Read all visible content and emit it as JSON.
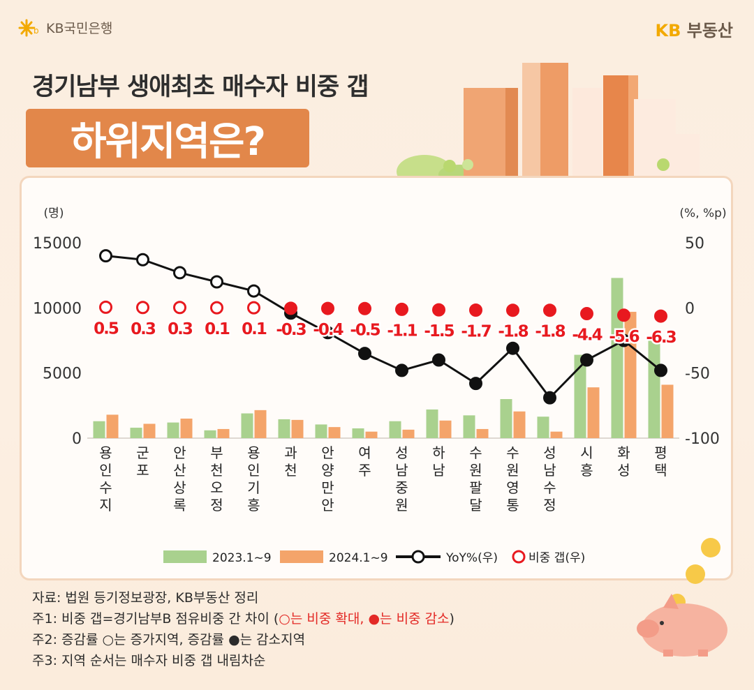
{
  "brand": {
    "left": "KB국민은행",
    "right_kb": "KB",
    "right_name": "부동산"
  },
  "header": {
    "subtitle": "경기남부 생애최초 매수자 비중 갭",
    "title": "하위지역은?"
  },
  "chart_data": {
    "type": "bar+line",
    "categories": [
      "용인수지",
      "군포",
      "안산상록",
      "부천오정",
      "용인기흥",
      "과천",
      "안양만안",
      "여주",
      "성남중원",
      "하남",
      "수원팔달",
      "수원영통",
      "성남수정",
      "시흥",
      "화성",
      "평택"
    ],
    "category_lines": [
      [
        "용",
        "인",
        "수",
        "지"
      ],
      [
        "군",
        "포"
      ],
      [
        "안",
        "산",
        "상",
        "록"
      ],
      [
        "부",
        "천",
        "오",
        "정"
      ],
      [
        "용",
        "인",
        "기",
        "흥"
      ],
      [
        "과",
        "천"
      ],
      [
        "안",
        "양",
        "만",
        "안"
      ],
      [
        "여",
        "주"
      ],
      [
        "성",
        "남",
        "중",
        "원"
      ],
      [
        "하",
        "남"
      ],
      [
        "수",
        "원",
        "팔",
        "달"
      ],
      [
        "수",
        "원",
        "영",
        "통"
      ],
      [
        "성",
        "남",
        "수",
        "정"
      ],
      [
        "시",
        "흥"
      ],
      [
        "화",
        "성"
      ],
      [
        "평",
        "택"
      ]
    ],
    "series": [
      {
        "name": "2023.1~9",
        "type": "bar",
        "axis": "left",
        "color": "#a9d18e",
        "values": [
          1300,
          800,
          1200,
          600,
          1900,
          1450,
          1050,
          750,
          1300,
          2200,
          1750,
          3000,
          1650,
          6400,
          12300,
          7600
        ]
      },
      {
        "name": "2024.1~9",
        "type": "bar",
        "axis": "left",
        "color": "#f4a46a",
        "values": [
          1800,
          1100,
          1500,
          700,
          2150,
          1400,
          850,
          500,
          650,
          1350,
          700,
          2050,
          500,
          3900,
          9700,
          4100
        ]
      },
      {
        "name": "YoY%(우)",
        "type": "line",
        "axis": "right",
        "color": "#111111",
        "values": [
          40,
          37,
          27,
          20,
          13,
          -4,
          -19,
          -35,
          -48,
          -40,
          -58,
          -31,
          -69,
          -40,
          -25,
          -48
        ]
      },
      {
        "name": "비중 갭(우)",
        "type": "point",
        "axis": "right",
        "color": "#e8191f",
        "values": [
          0.5,
          0.3,
          0.3,
          0.1,
          0.1,
          -0.3,
          -0.4,
          -0.5,
          -1.1,
          -1.5,
          -1.7,
          -1.8,
          -1.8,
          -4.4,
          -5.6,
          -6.3
        ],
        "labels": [
          "0.5",
          "0.3",
          "0.3",
          "0.1",
          "0.1",
          "-0.3",
          "-0.4",
          "-0.5",
          "-1.1",
          "-1.5",
          "-1.7",
          "-1.8",
          "-1.8",
          "-4.4",
          "-5.6",
          "-6.3"
        ]
      }
    ],
    "ylabel_left": "(명)",
    "ylabel_right": "(%, %p)",
    "ylim_left": [
      0,
      15000
    ],
    "yticks_left": [
      "15000",
      "10000",
      "5000",
      "0"
    ],
    "ylim_right": [
      -100,
      50
    ],
    "yticks_right": [
      "50",
      "0",
      "-50",
      "-100"
    ],
    "legend_position": "bottom"
  },
  "notes": {
    "source": "자료: 법원 등기정보광장, KB부동산 정리",
    "note1_a": "주1: 비중 갭=경기남부B 점유비중 간 차이 (",
    "note1_red": "는 비중 확대, ",
    "note1_red2": "는 비중 감소",
    "note1_b": ")",
    "note2": "주2: 증감률 ○는 증가지역, 증감률 ●는 감소지역",
    "note3": "주3: 지역 순서는 매수자 비중 갭 내림차순"
  }
}
